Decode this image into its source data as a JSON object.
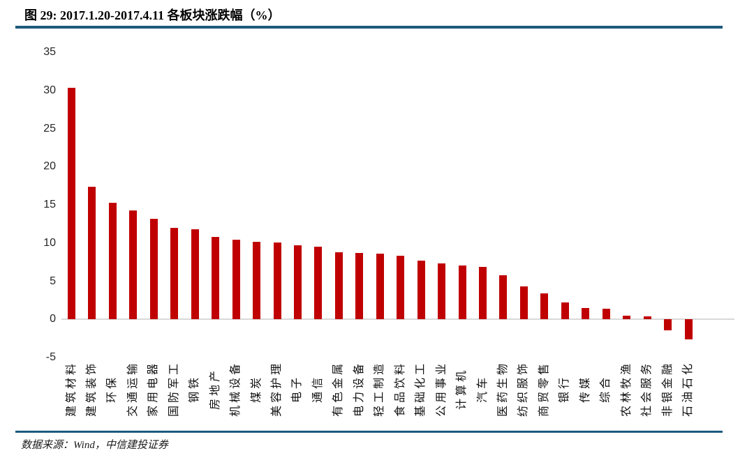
{
  "header": {
    "title": "图 29: 2017.1.20-2017.4.11 各板块涨跌幅（%）"
  },
  "footer": {
    "source": "数据来源：Wind，中信建投证券"
  },
  "colors": {
    "bar": "#C00000",
    "rule": "#1C5A7C",
    "baseline": "#D9D9D9",
    "axis_text": "#262626"
  },
  "chart_data": {
    "type": "bar",
    "title": "图 29: 2017.1.20-2017.4.11 各板块涨跌幅（%）",
    "xlabel": "",
    "ylabel": "",
    "ylim": [
      -5,
      35
    ],
    "yticks": [
      35,
      30,
      25,
      20,
      15,
      10,
      5,
      0,
      -5
    ],
    "grid": false,
    "legend": null,
    "categories": [
      "建筑材料",
      "建筑装饰",
      "环保",
      "交通运输",
      "家用电器",
      "国防军工",
      "钢铁",
      "房地产",
      "机械设备",
      "煤炭",
      "美容护理",
      "电子",
      "通信",
      "有色金属",
      "电力设备",
      "轻工制造",
      "食品饮料",
      "基础化工",
      "公用事业",
      "计算机",
      "汽车",
      "医药生物",
      "纺织服饰",
      "商贸零售",
      "银行",
      "传媒",
      "综合",
      "农林牧渔",
      "社会服务",
      "非银金融",
      "石油石化"
    ],
    "values": [
      30.3,
      17.4,
      15.3,
      14.3,
      13.2,
      12.0,
      11.8,
      10.8,
      10.4,
      10.2,
      10.1,
      9.7,
      9.5,
      8.8,
      8.7,
      8.6,
      8.3,
      7.7,
      7.3,
      7.1,
      6.9,
      5.8,
      4.3,
      3.4,
      2.2,
      1.5,
      1.4,
      0.5,
      0.4,
      -1.4,
      -2.6
    ]
  }
}
